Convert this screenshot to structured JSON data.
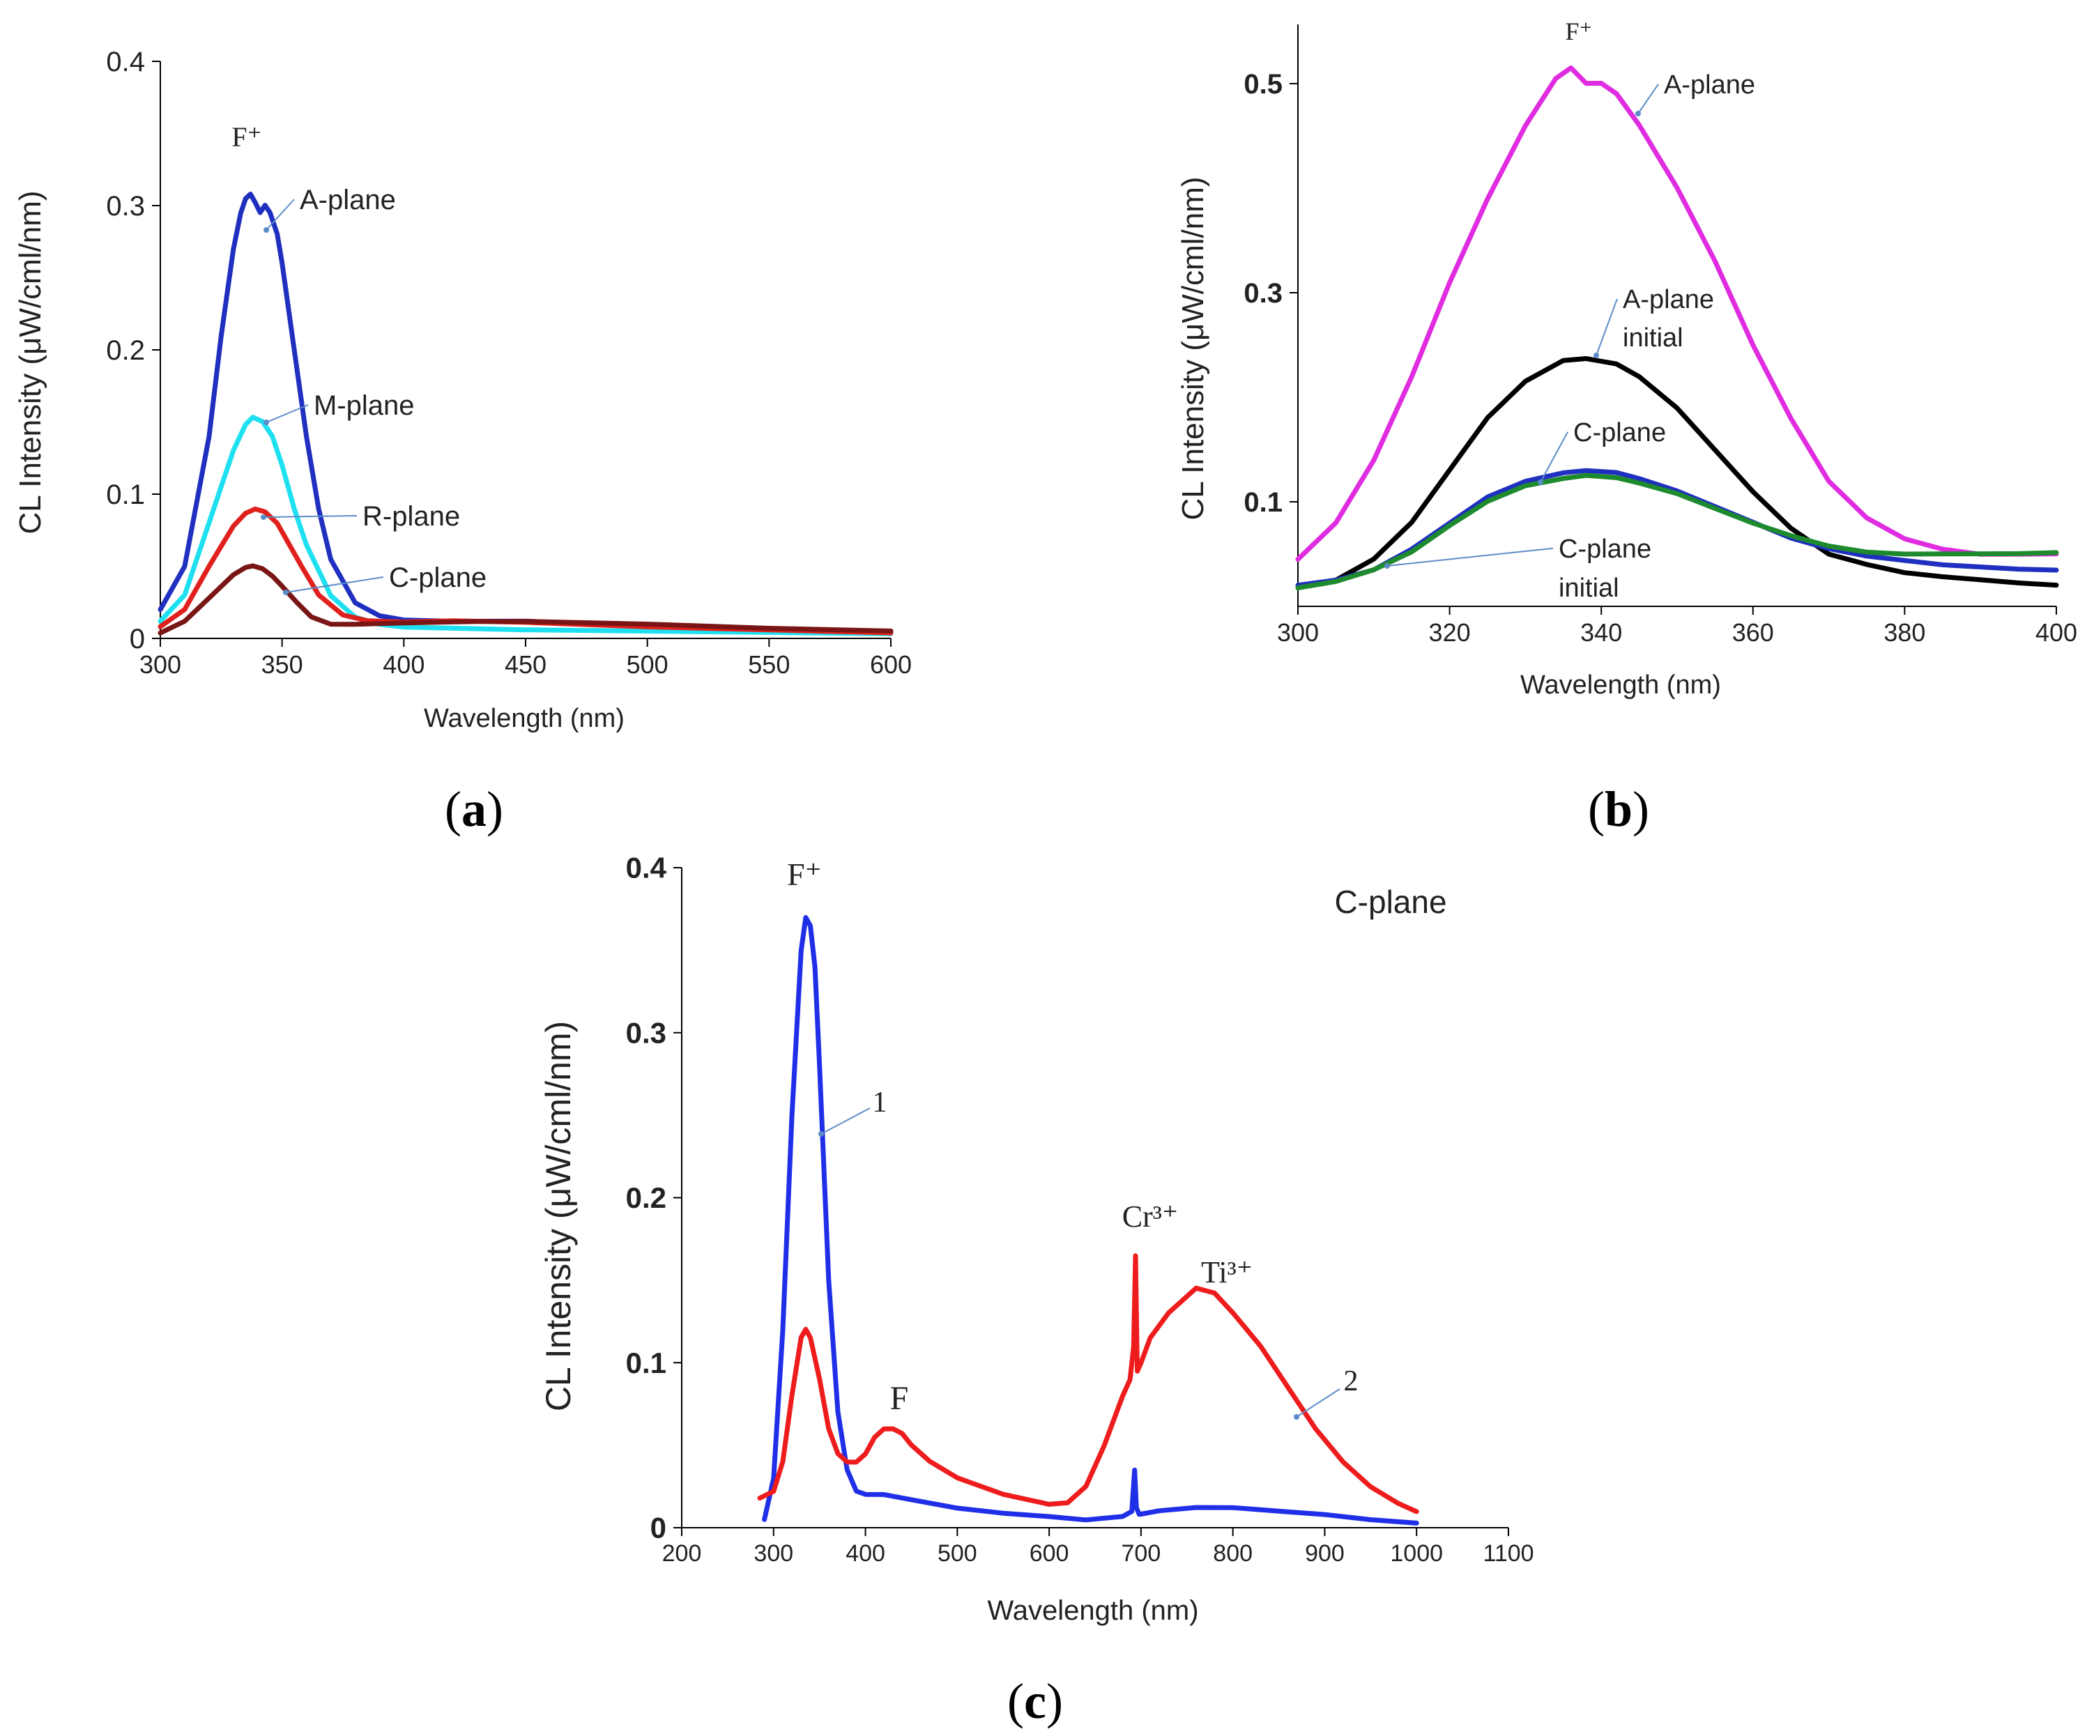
{
  "chart_data": [
    {
      "id": "a",
      "type": "line",
      "caption_letter": "a",
      "xlabel": "Wavelength (nm)",
      "ylabel": "CL Intensity (μW/cml/nm)",
      "xlim": [
        300,
        600
      ],
      "ylim": [
        0,
        0.4
      ],
      "xticks": [
        "300",
        "350",
        "400",
        "450",
        "500",
        "550",
        "600"
      ],
      "yticks": [
        "0",
        "0.1",
        "0.2",
        "0.3",
        "0.4"
      ],
      "peak_label": "F⁺",
      "series": [
        {
          "name": "A-plane",
          "color": "#1f2fbf",
          "x": [
            300,
            310,
            320,
            325,
            330,
            333,
            335,
            337,
            339,
            341,
            343,
            345,
            348,
            350,
            355,
            360,
            365,
            370,
            380,
            390,
            400,
            420,
            450,
            500,
            550,
            600
          ],
          "y": [
            0.02,
            0.05,
            0.14,
            0.21,
            0.27,
            0.295,
            0.305,
            0.308,
            0.302,
            0.295,
            0.3,
            0.295,
            0.28,
            0.26,
            0.2,
            0.14,
            0.09,
            0.055,
            0.025,
            0.016,
            0.013,
            0.012,
            0.012,
            0.008,
            0.006,
            0.004
          ]
        },
        {
          "name": "M-plane",
          "color": "#1ee0f0",
          "x": [
            300,
            310,
            320,
            330,
            335,
            338,
            342,
            346,
            350,
            355,
            360,
            370,
            380,
            390,
            400,
            450,
            500,
            550,
            600
          ],
          "y": [
            0.012,
            0.03,
            0.08,
            0.13,
            0.148,
            0.153,
            0.15,
            0.14,
            0.12,
            0.09,
            0.065,
            0.03,
            0.015,
            0.01,
            0.008,
            0.006,
            0.005,
            0.004,
            0.003
          ]
        },
        {
          "name": "R-plane",
          "color": "#e0201c",
          "x": [
            300,
            310,
            320,
            330,
            335,
            339,
            343,
            348,
            352,
            358,
            365,
            375,
            385,
            400,
            420,
            450,
            500,
            550,
            600
          ],
          "y": [
            0.008,
            0.02,
            0.05,
            0.078,
            0.087,
            0.09,
            0.088,
            0.08,
            0.068,
            0.05,
            0.03,
            0.016,
            0.012,
            0.011,
            0.012,
            0.011,
            0.008,
            0.006,
            0.004
          ]
        },
        {
          "name": "C-plane",
          "color": "#7a1515",
          "x": [
            300,
            310,
            320,
            330,
            335,
            338,
            342,
            346,
            350,
            356,
            362,
            370,
            380,
            400,
            430,
            450,
            500,
            550,
            600
          ],
          "y": [
            0.004,
            0.012,
            0.028,
            0.044,
            0.049,
            0.05,
            0.048,
            0.043,
            0.036,
            0.025,
            0.015,
            0.01,
            0.01,
            0.011,
            0.012,
            0.012,
            0.01,
            0.007,
            0.005
          ]
        }
      ],
      "annotations": [
        "A-plane",
        "M-plane",
        "R-plane",
        "C-plane"
      ]
    },
    {
      "id": "b",
      "type": "line",
      "caption_letter": "b",
      "xlabel": "Wavelength (nm)",
      "ylabel": "CL Intensity (μW/cml/nm)",
      "xlim": [
        300,
        400
      ],
      "ylim": [
        0,
        0.55
      ],
      "xticks": [
        "300",
        "320",
        "340",
        "360",
        "380",
        "400"
      ],
      "yticks": [
        "0.1",
        "0.3",
        "0.5"
      ],
      "ytick_values": [
        0.1,
        0.3,
        0.5
      ],
      "peak_label": "F⁺",
      "series": [
        {
          "name": "A-plane",
          "color": "#e02ce0",
          "x": [
            300,
            305,
            310,
            315,
            320,
            325,
            330,
            334,
            336,
            338,
            340,
            342,
            345,
            350,
            355,
            360,
            365,
            370,
            375,
            380,
            385,
            390,
            395,
            400
          ],
          "y": [
            0.045,
            0.08,
            0.14,
            0.22,
            0.31,
            0.39,
            0.46,
            0.505,
            0.515,
            0.5,
            0.5,
            0.49,
            0.46,
            0.4,
            0.33,
            0.25,
            0.18,
            0.12,
            0.085,
            0.065,
            0.055,
            0.05,
            0.05,
            0.05
          ]
        },
        {
          "name": "A-plane initial",
          "color": "#000000",
          "x": [
            300,
            305,
            310,
            315,
            320,
            325,
            330,
            335,
            338,
            342,
            345,
            350,
            355,
            360,
            365,
            370,
            375,
            380,
            385,
            390,
            395,
            400
          ],
          "y": [
            0.018,
            0.025,
            0.045,
            0.08,
            0.13,
            0.18,
            0.215,
            0.235,
            0.237,
            0.232,
            0.22,
            0.19,
            0.15,
            0.11,
            0.075,
            0.05,
            0.04,
            0.032,
            0.028,
            0.025,
            0.022,
            0.02
          ]
        },
        {
          "name": "C-plane",
          "color": "#1f2fbf",
          "x": [
            300,
            305,
            310,
            315,
            320,
            325,
            330,
            335,
            338,
            342,
            345,
            350,
            355,
            360,
            365,
            370,
            375,
            380,
            385,
            390,
            395,
            400
          ],
          "y": [
            0.02,
            0.025,
            0.035,
            0.055,
            0.08,
            0.105,
            0.12,
            0.128,
            0.13,
            0.128,
            0.122,
            0.11,
            0.095,
            0.08,
            0.065,
            0.055,
            0.048,
            0.044,
            0.04,
            0.038,
            0.036,
            0.035
          ]
        },
        {
          "name": "C-plane initial",
          "color": "#1e8a2e",
          "x": [
            300,
            305,
            310,
            315,
            320,
            325,
            330,
            335,
            338,
            342,
            345,
            350,
            355,
            360,
            365,
            370,
            375,
            380,
            385,
            390,
            395,
            400
          ],
          "y": [
            0.018,
            0.024,
            0.035,
            0.052,
            0.077,
            0.1,
            0.115,
            0.122,
            0.125,
            0.123,
            0.118,
            0.108,
            0.094,
            0.08,
            0.068,
            0.058,
            0.052,
            0.05,
            0.05,
            0.05,
            0.05,
            0.051
          ]
        }
      ],
      "annotations": [
        "A-plane",
        "A-plane initial",
        "C-plane",
        "C-plane initial"
      ]
    },
    {
      "id": "c",
      "type": "line",
      "caption_letter": "c",
      "title": "C-plane",
      "xlabel": "Wavelength (nm)",
      "ylabel": "CL Intensity (μW/cml/nm)",
      "xlim": [
        200,
        1100
      ],
      "ylim": [
        0,
        0.4
      ],
      "xticks": [
        "200",
        "300",
        "400",
        "500",
        "600",
        "700",
        "800",
        "900",
        "1000",
        "1100"
      ],
      "yticks": [
        "0",
        "0.1",
        "0.2",
        "0.3",
        "0.4"
      ],
      "peak_labels": [
        "F⁺",
        "F",
        "Cr³⁺",
        "Ti³⁺"
      ],
      "series": [
        {
          "name": "1",
          "color": "#1f2fe8",
          "x": [
            290,
            300,
            310,
            320,
            330,
            335,
            340,
            345,
            350,
            360,
            370,
            380,
            390,
            400,
            420,
            450,
            500,
            550,
            600,
            640,
            680,
            690,
            693,
            695,
            698,
            700,
            720,
            760,
            800,
            850,
            900,
            950,
            1000
          ],
          "y": [
            0.005,
            0.03,
            0.12,
            0.25,
            0.35,
            0.37,
            0.365,
            0.34,
            0.28,
            0.15,
            0.07,
            0.035,
            0.022,
            0.02,
            0.02,
            0.017,
            0.012,
            0.009,
            0.007,
            0.005,
            0.007,
            0.01,
            0.035,
            0.012,
            0.008,
            0.008,
            0.01,
            0.012,
            0.012,
            0.01,
            0.008,
            0.005,
            0.003
          ]
        },
        {
          "name": "2",
          "color": "#ee1c1c",
          "x": [
            285,
            300,
            310,
            320,
            330,
            335,
            340,
            350,
            360,
            370,
            380,
            390,
            400,
            410,
            420,
            430,
            440,
            450,
            470,
            500,
            550,
            600,
            620,
            640,
            660,
            680,
            688,
            692,
            694,
            696,
            700,
            710,
            730,
            760,
            780,
            800,
            830,
            860,
            890,
            920,
            950,
            980,
            1000
          ],
          "y": [
            0.018,
            0.022,
            0.04,
            0.08,
            0.115,
            0.12,
            0.115,
            0.09,
            0.06,
            0.045,
            0.04,
            0.04,
            0.045,
            0.055,
            0.06,
            0.06,
            0.057,
            0.05,
            0.04,
            0.03,
            0.02,
            0.014,
            0.015,
            0.025,
            0.05,
            0.08,
            0.09,
            0.11,
            0.165,
            0.095,
            0.1,
            0.115,
            0.13,
            0.145,
            0.142,
            0.13,
            0.11,
            0.085,
            0.06,
            0.04,
            0.025,
            0.015,
            0.01
          ]
        }
      ],
      "annotations": [
        "1",
        "2"
      ]
    }
  ]
}
